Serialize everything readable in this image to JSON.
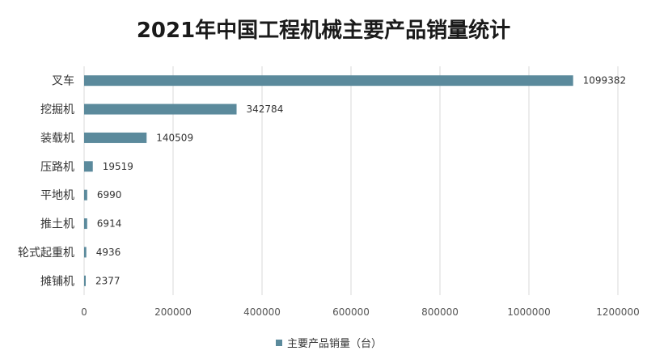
{
  "chart_data": {
    "type": "bar",
    "orientation": "horizontal",
    "title": "2021年中国工程机械主要产品销量统计",
    "categories": [
      "叉车",
      "挖掘机",
      "装载机",
      "压路机",
      "平地机",
      "推土机",
      "轮式起重机",
      "摊铺机"
    ],
    "series": [
      {
        "name": "主要产品销量（台）",
        "values": [
          1099382,
          342784,
          140509,
          19519,
          6990,
          6914,
          4936,
          2377
        ],
        "color": "#5b8a9c"
      }
    ],
    "xlim": [
      0,
      1200000
    ],
    "x_ticks": [
      "0",
      "200000",
      "400000",
      "600000",
      "800000",
      "1000000",
      "1200000"
    ],
    "grid": true,
    "legend_position": "bottom"
  }
}
